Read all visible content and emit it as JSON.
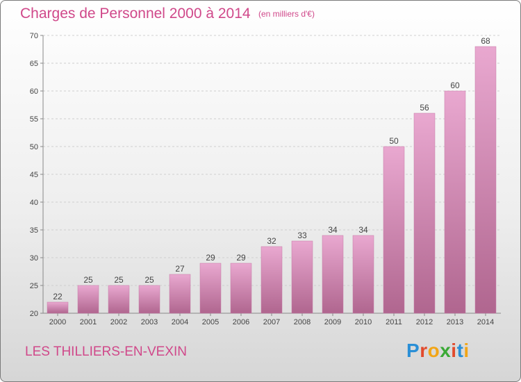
{
  "header": {
    "title": "Charges de Personnel 2000 à 2014",
    "subtitle": "(en milliers d'€)"
  },
  "footer": {
    "commune": "LES THILLIERS-EN-VEXIN",
    "logo_text": "Proxiti",
    "logo_letters": [
      {
        "char": "P",
        "color": "#2a8fd6"
      },
      {
        "char": "r",
        "color": "#e24a2c"
      },
      {
        "char": "o",
        "color": "#f2a516"
      },
      {
        "char": "x",
        "color": "#3aa935"
      },
      {
        "char": "i",
        "color": "#e24a2c"
      },
      {
        "char": "t",
        "color": "#2a8fd6"
      },
      {
        "char": "i",
        "color": "#f2a516"
      }
    ]
  },
  "colors": {
    "bar_top": "#e9a8d0",
    "bar_bottom": "#b0668f",
    "bar_edge": "#c57aa6",
    "accent": "#d0488a"
  },
  "chart_data": {
    "type": "bar",
    "title": "Charges de Personnel 2000 à 2014",
    "subtitle": "(en milliers d'€)",
    "categories": [
      "2000",
      "2001",
      "2002",
      "2003",
      "2004",
      "2005",
      "2006",
      "2007",
      "2008",
      "2009",
      "2010",
      "2011",
      "2012",
      "2013",
      "2014"
    ],
    "values": [
      22,
      25,
      25,
      25,
      27,
      29,
      29,
      32,
      33,
      34,
      34,
      50,
      56,
      60,
      68
    ],
    "ylim": [
      20,
      70
    ],
    "yticks": [
      20,
      25,
      30,
      35,
      40,
      45,
      50,
      55,
      60,
      65,
      70
    ],
    "grid": true,
    "legend": "none"
  }
}
